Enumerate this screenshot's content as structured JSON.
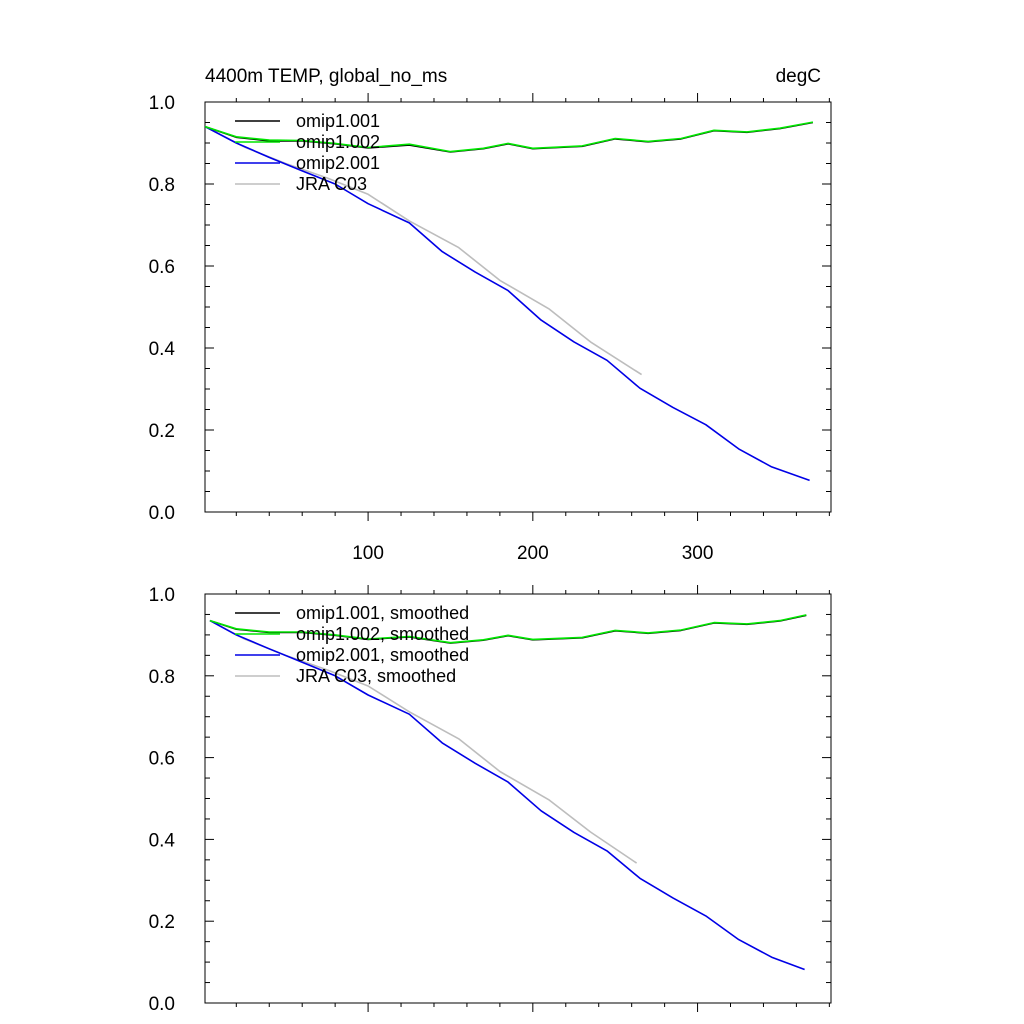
{
  "chart_data": [
    {
      "type": "line",
      "title": "4400m TEMP, global_no_ms",
      "units": "degC",
      "xlim": [
        1,
        381
      ],
      "ylim": [
        0.0,
        1.0
      ],
      "xticks": [
        100,
        200,
        300
      ],
      "yticks": [
        0.0,
        0.2,
        0.4,
        0.6,
        0.8,
        1.0
      ],
      "ytick_labels": [
        "0.0",
        "0.2",
        "0.4",
        "0.6",
        "0.8",
        "1.0"
      ],
      "show_x_tick_labels": true,
      "grid": false,
      "legend_position": "top-left",
      "series": [
        {
          "name": "omip1.001",
          "color": "#000000",
          "x": [
            1,
            20,
            40,
            60,
            80,
            100,
            125,
            150,
            170,
            185,
            200,
            230,
            250,
            270,
            290,
            310,
            330,
            350,
            370
          ],
          "y": [
            0.94,
            0.914,
            0.905,
            0.905,
            0.898,
            0.888,
            0.895,
            0.878,
            0.886,
            0.898,
            0.886,
            0.892,
            0.91,
            0.903,
            0.91,
            0.93,
            0.926,
            0.935,
            0.95
          ]
        },
        {
          "name": "omip1.002",
          "color": "#00e600",
          "x": [
            1,
            20,
            40,
            60,
            80,
            100,
            125,
            150,
            170,
            185,
            200,
            230,
            250,
            270,
            290,
            310,
            330,
            350,
            370
          ],
          "y": [
            0.94,
            0.915,
            0.907,
            0.906,
            0.899,
            0.889,
            0.897,
            0.879,
            0.887,
            0.899,
            0.887,
            0.893,
            0.911,
            0.904,
            0.911,
            0.931,
            0.927,
            0.936,
            0.951
          ]
        },
        {
          "name": "omip2.001",
          "color": "#0000e6",
          "x": [
            1,
            20,
            40,
            60,
            80,
            100,
            125,
            145,
            165,
            185,
            205,
            225,
            245,
            265,
            285,
            305,
            325,
            345,
            368
          ],
          "y": [
            0.94,
            0.9,
            0.865,
            0.832,
            0.8,
            0.752,
            0.705,
            0.635,
            0.585,
            0.54,
            0.468,
            0.415,
            0.37,
            0.302,
            0.255,
            0.213,
            0.154,
            0.11,
            0.077
          ]
        },
        {
          "name": "JRA C03",
          "color": "#bdbdbd",
          "x": [
            1,
            25,
            50,
            75,
            100,
            125,
            155,
            180,
            210,
            235,
            266
          ],
          "y": [
            0.94,
            0.89,
            0.85,
            0.815,
            0.775,
            0.71,
            0.645,
            0.565,
            0.495,
            0.415,
            0.335
          ]
        }
      ]
    },
    {
      "type": "line",
      "title": "",
      "units": "",
      "xlim": [
        1,
        381
      ],
      "ylim": [
        0.0,
        1.0
      ],
      "xticks": [
        100,
        200,
        300
      ],
      "yticks": [
        0.0,
        0.2,
        0.4,
        0.6,
        0.8,
        1.0
      ],
      "ytick_labels": [
        "0.0",
        "0.2",
        "0.4",
        "0.6",
        "0.8",
        "1.0"
      ],
      "show_x_tick_labels": false,
      "grid": false,
      "legend_position": "top-left",
      "series": [
        {
          "name": "omip1.001, smoothed",
          "color": "#000000",
          "x": [
            4,
            20,
            40,
            60,
            80,
            100,
            125,
            150,
            170,
            185,
            200,
            230,
            250,
            270,
            290,
            310,
            330,
            350,
            366
          ],
          "y": [
            0.935,
            0.914,
            0.906,
            0.906,
            0.899,
            0.889,
            0.895,
            0.88,
            0.887,
            0.898,
            0.888,
            0.893,
            0.91,
            0.904,
            0.911,
            0.929,
            0.926,
            0.934,
            0.948
          ]
        },
        {
          "name": "omip1.002, smoothed",
          "color": "#00e600",
          "x": [
            4,
            20,
            40,
            60,
            80,
            100,
            125,
            150,
            170,
            185,
            200,
            230,
            250,
            270,
            290,
            310,
            330,
            350,
            366
          ],
          "y": [
            0.935,
            0.915,
            0.907,
            0.907,
            0.9,
            0.89,
            0.896,
            0.881,
            0.888,
            0.899,
            0.889,
            0.894,
            0.911,
            0.905,
            0.912,
            0.93,
            0.927,
            0.935,
            0.949
          ]
        },
        {
          "name": "omip2.001, smoothed",
          "color": "#0000e6",
          "x": [
            4,
            20,
            40,
            60,
            80,
            100,
            125,
            145,
            165,
            185,
            205,
            225,
            245,
            265,
            285,
            305,
            325,
            345,
            365
          ],
          "y": [
            0.935,
            0.9,
            0.866,
            0.833,
            0.8,
            0.753,
            0.706,
            0.636,
            0.586,
            0.54,
            0.47,
            0.417,
            0.372,
            0.305,
            0.257,
            0.213,
            0.155,
            0.112,
            0.082
          ]
        },
        {
          "name": "JRA C03, smoothed",
          "color": "#bdbdbd",
          "x": [
            4,
            25,
            50,
            75,
            100,
            125,
            155,
            180,
            210,
            235,
            263
          ],
          "y": [
            0.935,
            0.89,
            0.85,
            0.815,
            0.775,
            0.712,
            0.646,
            0.566,
            0.496,
            0.418,
            0.342
          ]
        }
      ]
    }
  ]
}
